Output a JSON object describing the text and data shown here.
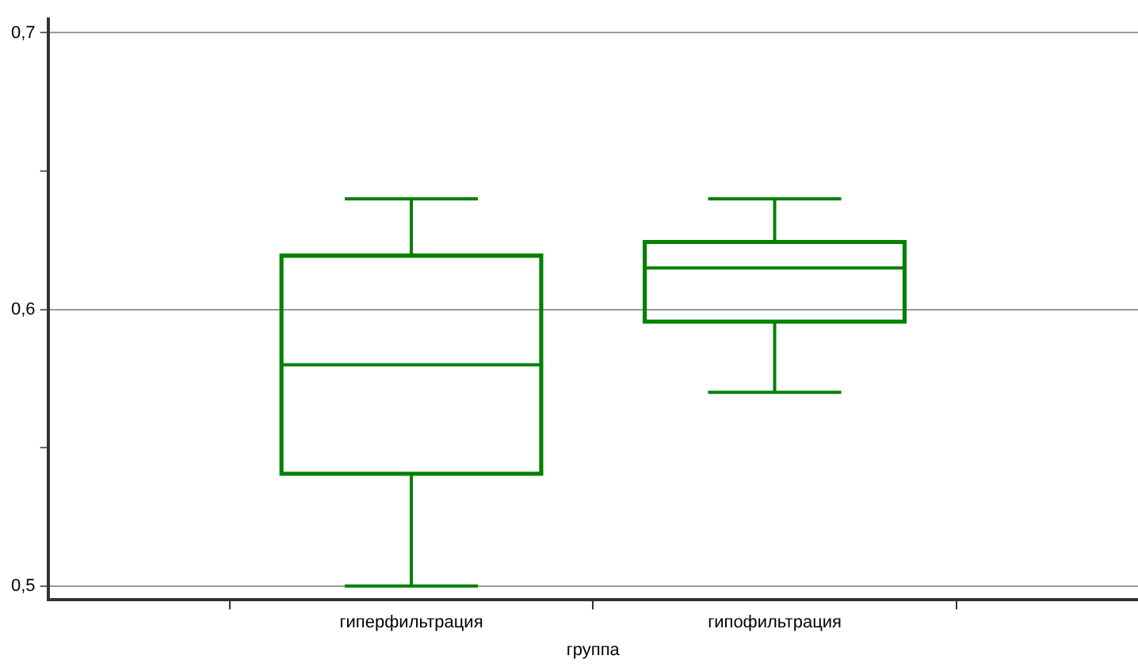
{
  "chart_data": {
    "type": "box",
    "xlabel": "группа",
    "categories": [
      "гиперфильтрация",
      "гипофильтрация"
    ],
    "color": "#008000",
    "boxes": [
      {
        "low": 0.5,
        "q1": 0.54,
        "median": 0.58,
        "q3": 0.62,
        "high": 0.64
      },
      {
        "low": 0.57,
        "q1": 0.595,
        "median": 0.615,
        "q3": 0.625,
        "high": 0.64
      }
    ],
    "ylim": [
      0.495,
      0.705
    ],
    "yticks": [
      {
        "value": 0.5,
        "label": "0,5"
      },
      {
        "value": 0.55,
        "label": null
      },
      {
        "value": 0.6,
        "label": "0,6"
      },
      {
        "value": 0.65,
        "label": null
      },
      {
        "value": 0.7,
        "label": "0,7"
      }
    ],
    "grid": "y"
  }
}
